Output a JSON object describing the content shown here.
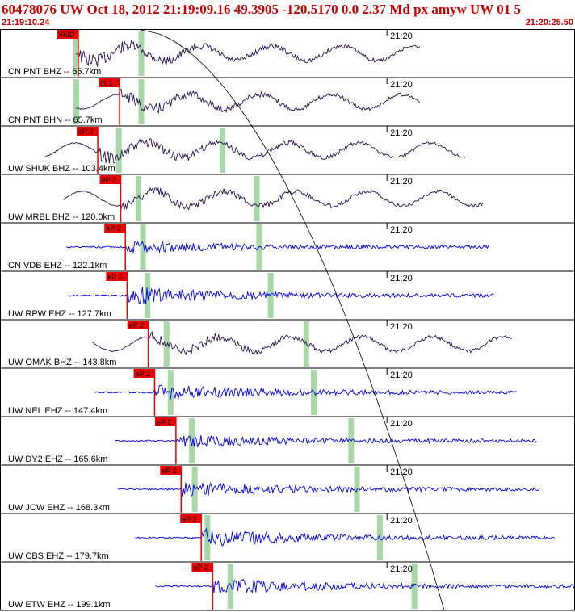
{
  "header": {
    "title": "60478076 UW Oct 18, 2012 21:19:09.16    49.3905 -120.5170  0.0 2.37 Md px amyw UW 01    5",
    "start_time": "21:19:10.24",
    "end_time": "21:20:25.50"
  },
  "colors": {
    "trace_bb": "#2a1050",
    "trace_sp": "#0000ee",
    "pick": "#ee0000",
    "green_bar": "#a8d8a8",
    "grid": "#000000"
  },
  "chart_data": {
    "type": "line",
    "xlabel": "",
    "ylabel": "",
    "x_tick_label": "21:20",
    "x_range": [
      "21:19:10.24",
      "21:20:25.50"
    ],
    "grid": false,
    "traces": [
      {
        "label": "CN PNT BHZ -- 65.7km",
        "pick": "iPdD",
        "pick_t": 0.136,
        "onset": 0.132,
        "end": 0.73,
        "kind": "bb",
        "amp": 0.8,
        "p_green": 0.132,
        "s_green": 0.245
      },
      {
        "label": "CN PNT BHN -- 65.7km",
        "pick": "iS 1",
        "pick_t": 0.208,
        "onset": 0.132,
        "end": 0.73,
        "kind": "bb",
        "amp": 0.6,
        "p_green": 0.132,
        "s_green": 0.245
      },
      {
        "label": "UW SHUK BHZ -- 103.4km",
        "pick": "eP 2",
        "pick_t": 0.17,
        "onset": 0.078,
        "end": 0.81,
        "kind": "bb",
        "amp": 0.7,
        "p_green": 0.206,
        "s_green": 0.386
      },
      {
        "label": "UW MRBL BHZ -- 120.0km",
        "pick": "eP 2",
        "pick_t": 0.21,
        "onset": 0.11,
        "end": 0.84,
        "kind": "bb",
        "amp": 0.6,
        "p_green": 0.24,
        "s_green": 0.446
      },
      {
        "label": "CN VDB EHZ -- 122.1km",
        "pick": "eP 2",
        "pick_t": 0.218,
        "onset": 0.116,
        "end": 0.85,
        "kind": "sp",
        "amp": 0.5,
        "p_green": 0.248,
        "s_green": 0.45
      },
      {
        "label": "UW RPW EHZ -- 127.7km",
        "pick": "eP 2",
        "pick_t": 0.221,
        "onset": 0.12,
        "end": 0.86,
        "kind": "sp",
        "amp": 0.8,
        "p_green": 0.256,
        "s_green": 0.47
      },
      {
        "label": "UW OMAK BHZ -- 143.8km",
        "pick": "eP 2",
        "pick_t": 0.258,
        "onset": 0.16,
        "end": 0.89,
        "kind": "bb",
        "amp": 0.6,
        "p_green": 0.289,
        "s_green": 0.532
      },
      {
        "label": "UW NEL EHZ -- 147.4km",
        "pick": "eP 2",
        "pick_t": 0.269,
        "onset": 0.165,
        "end": 0.9,
        "kind": "sp",
        "amp": 0.7,
        "p_green": 0.296,
        "s_green": 0.545
      },
      {
        "label": "UW DY2 EHZ -- 165.6km",
        "pick": "eP 2",
        "pick_t": 0.306,
        "onset": 0.2,
        "end": 0.935,
        "kind": "sp",
        "amp": 0.6,
        "p_green": 0.333,
        "s_green": 0.61
      },
      {
        "label": "UW JCW EHZ -- 168.3km",
        "pick": "eP 2",
        "pick_t": 0.315,
        "onset": 0.205,
        "end": 0.94,
        "kind": "sp",
        "amp": 0.6,
        "p_green": 0.338,
        "s_green": 0.62
      },
      {
        "label": "UW CBS EHZ -- 179.7km",
        "pick": "eP 2",
        "pick_t": 0.35,
        "onset": 0.235,
        "end": 0.965,
        "kind": "sp",
        "amp": 0.8,
        "p_green": 0.36,
        "s_green": 0.66
      },
      {
        "label": "UW ETW EHZ -- 199.1km",
        "pick": "eP 2",
        "pick_t": 0.37,
        "onset": 0.27,
        "end": 1.0,
        "kind": "sp",
        "amp": 0.7,
        "p_green": 0.4,
        "s_green": 0.72
      }
    ]
  }
}
